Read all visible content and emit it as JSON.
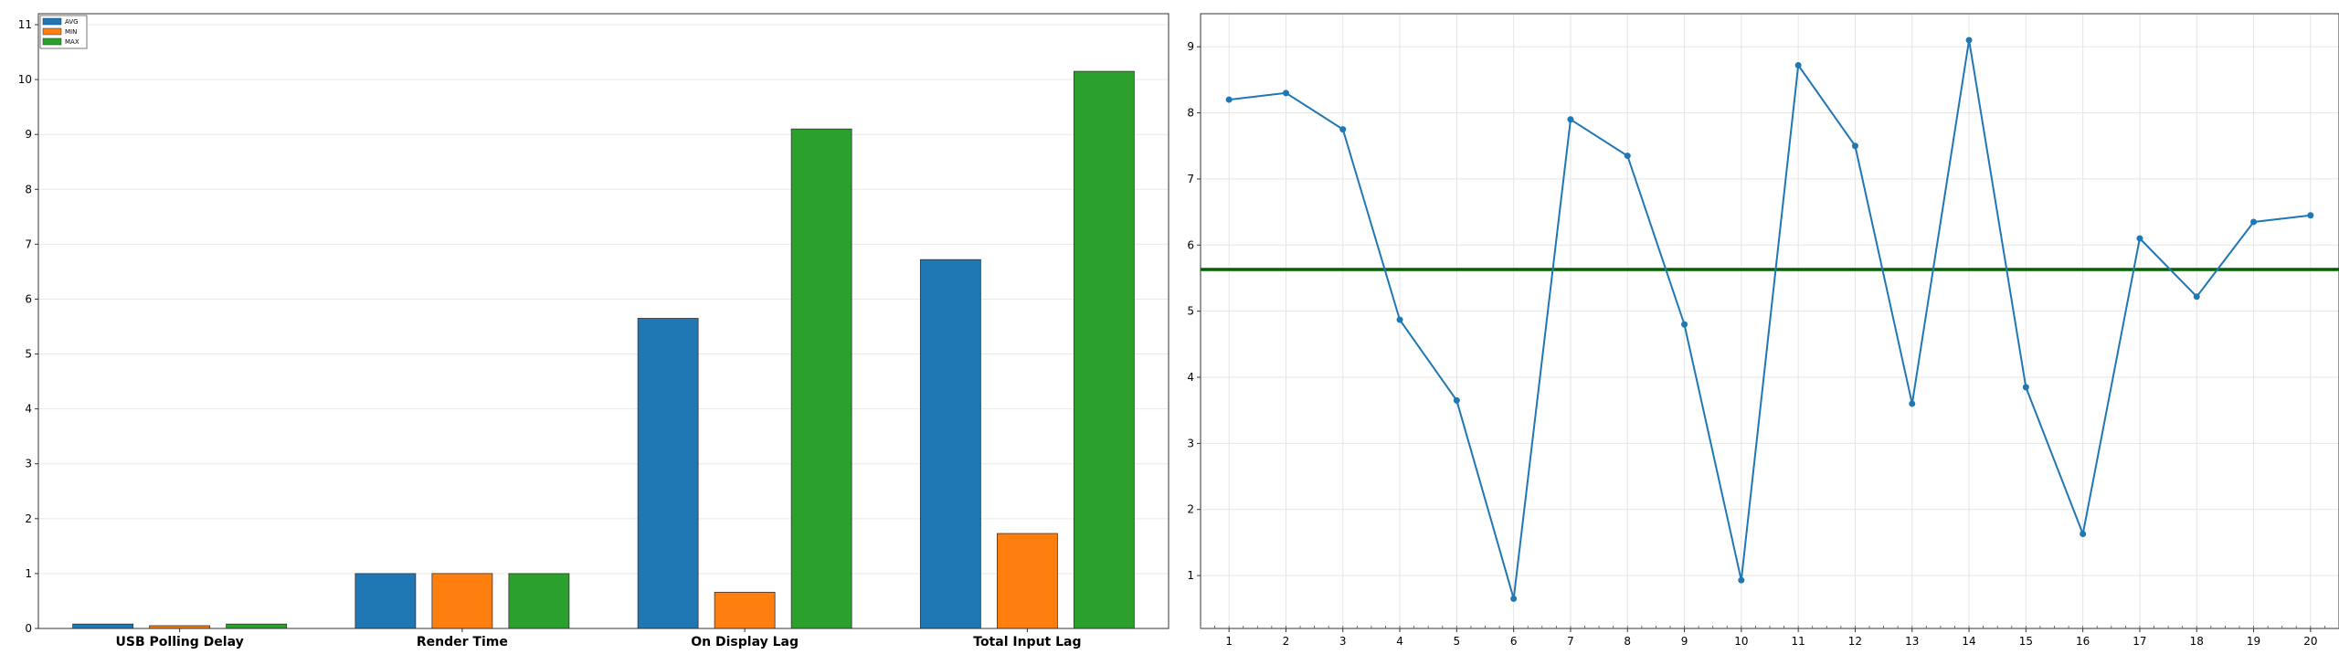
{
  "chart_data": [
    {
      "type": "bar",
      "title": "",
      "xlabel": "",
      "ylabel": "",
      "categories": [
        "USB Polling Delay",
        "Render Time",
        "On Display Lag",
        "Total Input Lag"
      ],
      "series": [
        {
          "name": "AVG",
          "color": "#1f77b4",
          "values": [
            0.08,
            1.0,
            5.65,
            6.72
          ]
        },
        {
          "name": "MIN",
          "color": "#ff7f0e",
          "values": [
            0.05,
            1.0,
            0.66,
            1.73
          ]
        },
        {
          "name": "MAX",
          "color": "#2ca02c",
          "values": [
            0.08,
            1.0,
            9.1,
            10.15
          ]
        }
      ],
      "ylim": [
        0,
        11.2
      ],
      "yticks": [
        0,
        1,
        2,
        3,
        4,
        5,
        6,
        7,
        8,
        9,
        10,
        11
      ],
      "grid": "horizontal",
      "legend": "top-left"
    },
    {
      "type": "line",
      "title": "",
      "xlabel": "",
      "ylabel": "",
      "x": [
        1,
        2,
        3,
        4,
        5,
        6,
        7,
        8,
        9,
        10,
        11,
        12,
        13,
        14,
        15,
        16,
        17,
        18,
        19,
        20
      ],
      "series": [
        {
          "color": "#1f77b4",
          "values": [
            8.2,
            8.3,
            7.75,
            4.87,
            3.65,
            0.65,
            7.9,
            7.35,
            4.8,
            0.93,
            8.72,
            7.5,
            3.6,
            9.1,
            3.85,
            1.63,
            6.1,
            5.22,
            6.35,
            6.45
          ]
        }
      ],
      "reference_line": {
        "value": 5.63,
        "color": "#006400"
      },
      "xlim": [
        0.5,
        20.5
      ],
      "ylim": [
        0.2,
        9.5
      ],
      "xticks": [
        1,
        2,
        3,
        4,
        5,
        6,
        7,
        8,
        9,
        10,
        11,
        12,
        13,
        14,
        15,
        16,
        17,
        18,
        19,
        20
      ],
      "yticks": [
        1,
        2,
        3,
        4,
        5,
        6,
        7,
        8,
        9
      ],
      "grid": "both"
    }
  ]
}
